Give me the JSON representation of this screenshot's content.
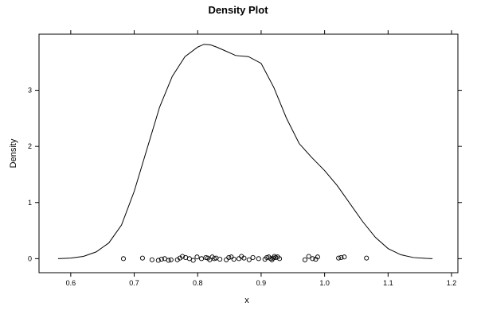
{
  "chart_data": {
    "type": "density",
    "title": "Density Plot",
    "xlabel": "x",
    "ylabel": "Density",
    "xlim": [
      0.55,
      1.21
    ],
    "ylim": [
      -0.25,
      4.0
    ],
    "grid": false,
    "x_ticks": [
      0.6,
      0.7,
      0.8,
      0.9,
      1.0,
      1.1,
      1.2
    ],
    "x_tick_labels": [
      "0.6",
      "0.7",
      "0.8",
      "0.9",
      "1.0",
      "1.1",
      "1.2"
    ],
    "y_ticks": [
      0,
      1,
      2,
      3
    ],
    "y_tick_labels": [
      "0",
      "1",
      "2",
      "3"
    ],
    "density": {
      "x": [
        0.58,
        0.6,
        0.62,
        0.64,
        0.66,
        0.68,
        0.7,
        0.72,
        0.74,
        0.76,
        0.78,
        0.8,
        0.81,
        0.82,
        0.83,
        0.84,
        0.86,
        0.88,
        0.9,
        0.92,
        0.94,
        0.96,
        0.98,
        1.0,
        1.02,
        1.04,
        1.06,
        1.08,
        1.1,
        1.12,
        1.14,
        1.16,
        1.17
      ],
      "y": [
        0.0,
        0.01,
        0.04,
        0.12,
        0.28,
        0.6,
        1.2,
        1.95,
        2.7,
        3.25,
        3.6,
        3.77,
        3.82,
        3.81,
        3.77,
        3.72,
        3.62,
        3.6,
        3.48,
        3.05,
        2.5,
        2.05,
        1.8,
        1.57,
        1.3,
        0.98,
        0.66,
        0.38,
        0.18,
        0.07,
        0.02,
        0.005,
        0.0
      ]
    },
    "points": {
      "x": [
        0.683,
        0.713,
        0.728,
        0.738,
        0.743,
        0.748,
        0.754,
        0.758,
        0.768,
        0.772,
        0.776,
        0.781,
        0.787,
        0.793,
        0.799,
        0.806,
        0.813,
        0.816,
        0.819,
        0.823,
        0.826,
        0.829,
        0.835,
        0.845,
        0.849,
        0.853,
        0.857,
        0.865,
        0.869,
        0.873,
        0.881,
        0.887,
        0.896,
        0.906,
        0.909,
        0.912,
        0.915,
        0.917,
        0.919,
        0.921,
        0.923,
        0.926,
        0.929,
        0.969,
        0.975,
        0.981,
        0.986,
        0.989,
        1.022,
        1.026,
        1.031,
        1.066
      ],
      "y": [
        0.0,
        0.01,
        -0.02,
        -0.03,
        -0.01,
        0.0,
        -0.03,
        -0.02,
        -0.02,
        0.01,
        0.04,
        0.02,
        0.0,
        -0.03,
        0.03,
        0.0,
        0.02,
        0.01,
        -0.02,
        0.03,
        0.0,
        0.01,
        -0.01,
        -0.02,
        0.02,
        0.03,
        -0.01,
        0.0,
        0.04,
        0.01,
        -0.02,
        0.02,
        0.0,
        -0.01,
        0.02,
        0.03,
        0.0,
        -0.02,
        0.01,
        0.04,
        0.02,
        0.03,
        0.0,
        -0.02,
        0.04,
        0.0,
        -0.01,
        0.03,
        0.01,
        0.02,
        0.03,
        0.01
      ]
    }
  }
}
